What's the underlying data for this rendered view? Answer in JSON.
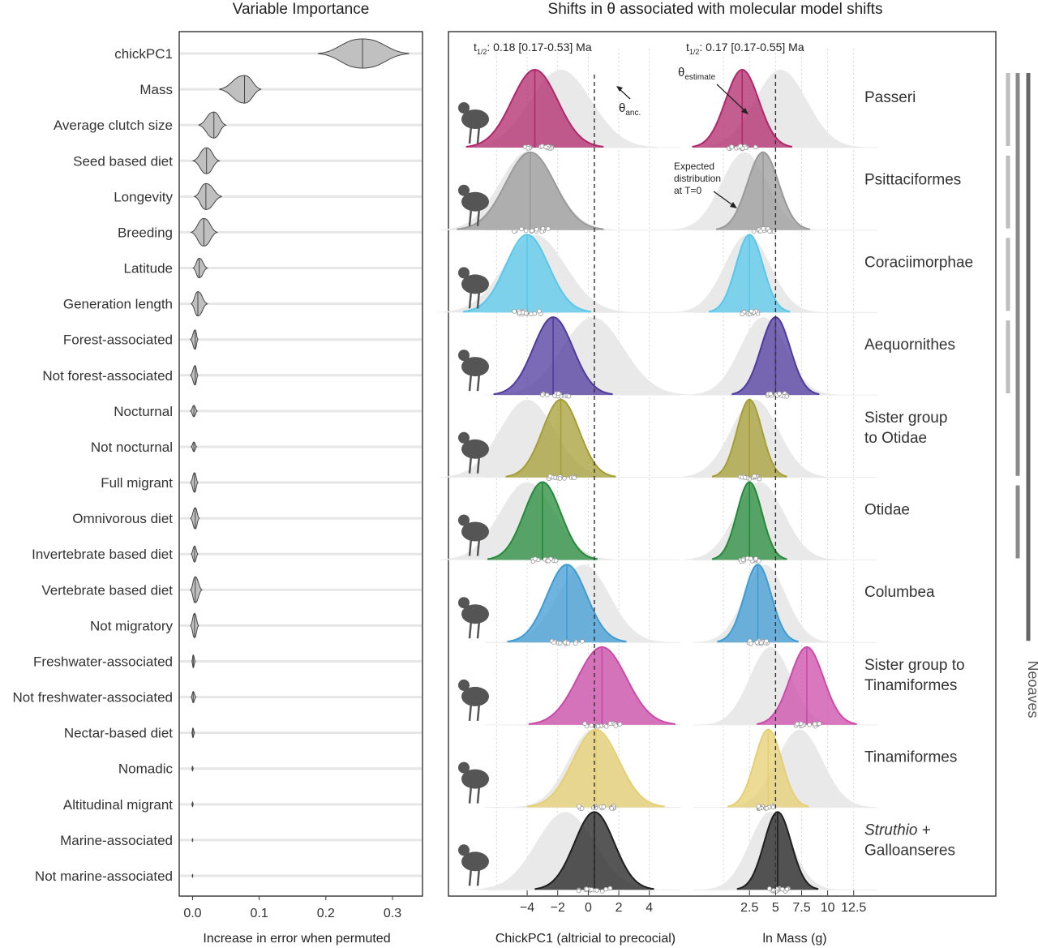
{
  "chart_data": [
    {
      "type": "violin",
      "title": "Variable Importance",
      "xlabel": "Increase in error when permuted",
      "xlim": [
        -0.02,
        0.345
      ],
      "xticks": [
        0.0,
        0.1,
        0.2,
        0.3
      ],
      "xtick_labels": [
        "0.0",
        "0.1",
        "0.2",
        "0.3"
      ],
      "fill_color": "#c0c0c0",
      "variables": [
        {
          "label": "chickPC1",
          "median": 0.255,
          "min": 0.188,
          "max": 0.325,
          "width": 0.9
        },
        {
          "label": "Mass",
          "median": 0.078,
          "min": 0.04,
          "max": 0.103,
          "width": 0.85
        },
        {
          "label": "Average clutch size",
          "median": 0.032,
          "min": 0.009,
          "max": 0.05,
          "width": 0.8
        },
        {
          "label": "Seed based diet",
          "median": 0.021,
          "min": 0.001,
          "max": 0.04,
          "width": 0.8
        },
        {
          "label": "Longevity",
          "median": 0.02,
          "min": 0.003,
          "max": 0.044,
          "width": 0.8
        },
        {
          "label": "Breeding",
          "median": 0.017,
          "min": -0.002,
          "max": 0.037,
          "width": 0.85
        },
        {
          "label": "Latitude",
          "median": 0.01,
          "min": 0.001,
          "max": 0.022,
          "width": 0.6
        },
        {
          "label": "Generation length",
          "median": 0.008,
          "min": -0.002,
          "max": 0.022,
          "width": 0.75
        },
        {
          "label": "Forest-associated",
          "median": 0.004,
          "min": -0.003,
          "max": 0.008,
          "width": 0.6
        },
        {
          "label": "Not forest-associated",
          "median": 0.004,
          "min": -0.003,
          "max": 0.008,
          "width": 0.6
        },
        {
          "label": "Nocturnal",
          "median": 0.002,
          "min": -0.003,
          "max": 0.007,
          "width": 0.35
        },
        {
          "label": "Not nocturnal",
          "median": 0.002,
          "min": -0.002,
          "max": 0.006,
          "width": 0.3
        },
        {
          "label": "Full migrant",
          "median": 0.003,
          "min": -0.003,
          "max": 0.008,
          "width": 0.6
        },
        {
          "label": "Omnivorous diet",
          "median": 0.004,
          "min": -0.003,
          "max": 0.01,
          "width": 0.65
        },
        {
          "label": "Invertebrate based diet",
          "median": 0.003,
          "min": -0.002,
          "max": 0.008,
          "width": 0.5
        },
        {
          "label": "Vertebrate based diet",
          "median": 0.004,
          "min": -0.003,
          "max": 0.014,
          "width": 0.8
        },
        {
          "label": "Not migratory",
          "median": 0.003,
          "min": -0.003,
          "max": 0.009,
          "width": 0.75
        },
        {
          "label": "Freshwater-associated",
          "median": 0.001,
          "min": -0.001,
          "max": 0.004,
          "width": 0.4
        },
        {
          "label": "Not freshwater-associated",
          "median": 0.001,
          "min": -0.002,
          "max": 0.005,
          "width": 0.35
        },
        {
          "label": "Nectar-based diet",
          "median": 0.0005,
          "min": -0.001,
          "max": 0.003,
          "width": 0.3
        },
        {
          "label": "Nomadic",
          "median": 0.0,
          "min": -0.001,
          "max": 0.001,
          "width": 0.15
        },
        {
          "label": "Altitudinal migrant",
          "median": 0.0,
          "min": -0.001,
          "max": 0.001,
          "width": 0.15
        },
        {
          "label": "Marine-associated",
          "median": 0.0,
          "min": -0.0005,
          "max": 0.0005,
          "width": 0.1
        },
        {
          "label": "Not marine-associated",
          "median": 0.0,
          "min": -0.0005,
          "max": 0.0005,
          "width": 0.1
        }
      ]
    },
    {
      "type": "density",
      "title": "Shifts in θ associated with molecular model shifts",
      "legend_note": "Neoaves",
      "annotations": {
        "estimate_main": "θ",
        "estimate_sub": "estimate",
        "anc_main": "θ",
        "anc_sub": "anc.",
        "expected": [
          "Expected",
          "distribution",
          "at T=0"
        ]
      },
      "panels": [
        {
          "xlabel": "ChickPC1 (altricial to precocial)",
          "xlim": [
            -6.5,
            5.5
          ],
          "xticks": [
            -4,
            -2,
            0,
            2,
            4
          ],
          "xtick_labels": [
            "−4",
            "−2",
            "0",
            "2",
            "4"
          ],
          "gridlines": [
            -6,
            -4,
            -2,
            0,
            2,
            4
          ],
          "theta_anc": 0.4,
          "thalf_sub": "1/2",
          "thalf_value": ": 0.18 [0.17-0.53]  Ma",
          "clades": [
            {
              "theta": -3.5,
              "sd": 1.5,
              "exp_mean": -1.8,
              "exp_sd": 2.0
            },
            {
              "theta": -3.8,
              "sd": 1.6,
              "exp_mean": -4.0,
              "exp_sd": 1.8
            },
            {
              "theta": -4.0,
              "sd": 1.4,
              "exp_mean": -3.5,
              "exp_sd": 2.0
            },
            {
              "theta": -2.3,
              "sd": 1.3,
              "exp_mean": 0.3,
              "exp_sd": 2.0
            },
            {
              "theta": -1.8,
              "sd": 1.2,
              "exp_mean": -4.0,
              "exp_sd": 1.8
            },
            {
              "theta": -3.0,
              "sd": 1.2,
              "exp_mean": -4.0,
              "exp_sd": 1.8
            },
            {
              "theta": -1.4,
              "sd": 1.3,
              "exp_mean": -0.3,
              "exp_sd": 1.7
            },
            {
              "theta": 0.9,
              "sd": 1.6,
              "exp_mean": 0.9,
              "exp_sd": 1.6
            },
            {
              "theta": 0.5,
              "sd": 1.5,
              "exp_mean": 0.3,
              "exp_sd": 1.6
            },
            {
              "theta": 0.4,
              "sd": 1.3,
              "exp_mean": -1.5,
              "exp_sd": 1.9
            }
          ]
        },
        {
          "xlabel": "ln Mass (g)",
          "xlim": [
            -2.5,
            14.0
          ],
          "xticks": [
            2.5,
            5,
            7.5,
            10,
            12.5
          ],
          "xtick_labels": [
            "2.5",
            "5",
            "7.5",
            "10",
            "12.5"
          ],
          "gridlines": [
            0,
            2.5,
            5,
            7.5,
            10,
            12.5
          ],
          "theta_anc": 5.0,
          "thalf_sub": "1/2",
          "thalf_value": ": 0.17 [0.17-0.55]  Ma",
          "clades": [
            {
              "theta": 1.8,
              "sd": 1.6,
              "exp_mean": 5.5,
              "exp_sd": 2.5
            },
            {
              "theta": 3.8,
              "sd": 1.5,
              "exp_mean": 2.0,
              "exp_sd": 2.2
            },
            {
              "theta": 2.5,
              "sd": 1.3,
              "exp_mean": 2.3,
              "exp_sd": 2.2
            },
            {
              "theta": 5.0,
              "sd": 1.4,
              "exp_mean": 3.8,
              "exp_sd": 2.2
            },
            {
              "theta": 2.5,
              "sd": 1.2,
              "exp_mean": 3.0,
              "exp_sd": 2.3
            },
            {
              "theta": 2.5,
              "sd": 1.2,
              "exp_mean": 3.5,
              "exp_sd": 2.3
            },
            {
              "theta": 3.3,
              "sd": 1.3,
              "exp_mean": 4.0,
              "exp_sd": 2.0
            },
            {
              "theta": 8.0,
              "sd": 1.6,
              "exp_mean": 4.5,
              "exp_sd": 2.0
            },
            {
              "theta": 4.3,
              "sd": 1.3,
              "exp_mean": 7.3,
              "exp_sd": 2.2
            },
            {
              "theta": 5.2,
              "sd": 1.3,
              "exp_mean": 4.5,
              "exp_sd": 2.0
            }
          ]
        }
      ],
      "clades": [
        {
          "label": "Passeri",
          "color": "#b0286b"
        },
        {
          "label": "Psittaciformes",
          "color": "#9a9a9a"
        },
        {
          "label": "Coraciimorphae",
          "color": "#58c8ea"
        },
        {
          "label": "Aequornithes",
          "color": "#4f3a9e"
        },
        {
          "label": "Sister group\nto Otidae",
          "color": "#a59e35"
        },
        {
          "label": "Otidae",
          "color": "#25893a"
        },
        {
          "label": "Columbea",
          "color": "#3f9bd3"
        },
        {
          "label": "Sister group to\nTinamiformes",
          "color": "#cc4aa9"
        },
        {
          "label": "Tinamiformes",
          "color": "#e6cf72"
        },
        {
          "label": "Struthio + \nGalloanseres",
          "italic_part": "Struthio",
          "color": "#1f1f1f"
        }
      ],
      "phylo_bars": [
        {
          "from_clade": 0,
          "to_clade": 0,
          "level": 0
        },
        {
          "from_clade": 1,
          "to_clade": 1,
          "level": 0
        },
        {
          "from_clade": 2,
          "to_clade": 2,
          "level": 0
        },
        {
          "from_clade": 3,
          "to_clade": 3,
          "level": 0
        },
        {
          "from_clade": 0,
          "to_clade": 4,
          "level": 1
        },
        {
          "from_clade": 5,
          "to_clade": 5,
          "level": 1
        },
        {
          "from_clade": 0,
          "to_clade": 6,
          "level": 2
        }
      ]
    }
  ]
}
